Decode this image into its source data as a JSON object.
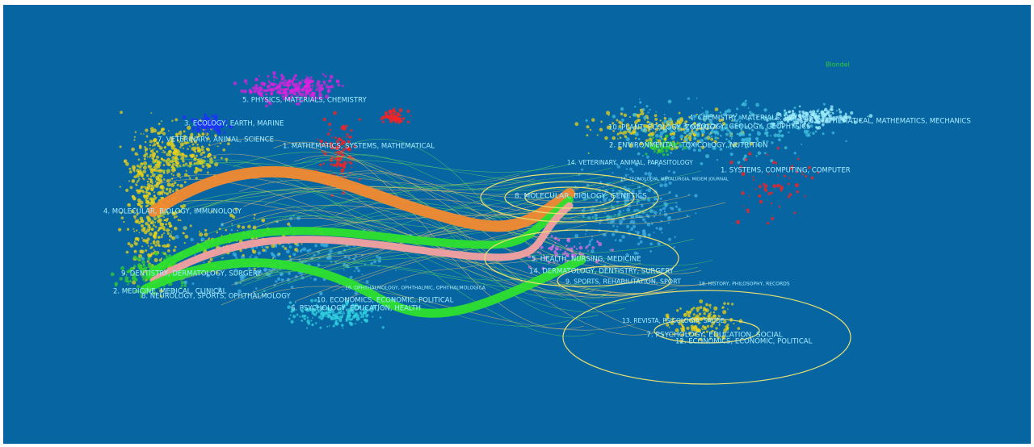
{
  "legend_text": "Blondel",
  "left_map": {
    "labels": [
      "5. PHYSICS, MATERIALS, CHEMISTRY",
      "3. ECOLOGY, EARTH, MARINE",
      "7. VETERINARY, ANIMAL, SCIENCE",
      "1. MATHEMATICS, SYSTEMS, MATHEMATICAL",
      "4. MOLECULAR, BIOLOGY, IMMUNOLOGY",
      "9. DENTISTRY, DERMATOLOGY, SURGERY",
      "2. MEDICINE, MEDICAL, CLINICAL",
      "8. NEUROLOGY, SPORTS, OPHTHALMOLOGY",
      "16. OPHTHALMOLOGY, OPHTHALMIC, OPHTHALMOLOGICA",
      "10. ECONOMICS, ECONOMIC, POLITICAL",
      "6. PSYCHOLOGY, EDUCATION, HEALTH"
    ]
  },
  "right_map": {
    "labels": [
      "4. CHEMISTRY, MATERIALS, PHYSICS",
      "6. MATHEMATICAL, MATHEMATICS, MECHANICS",
      "10. PLANT, ECOLOGY, ZOOLOGY",
      "3. GEOLOGY, GEOLOGY, GEOPHYSICS",
      "2. ENVIRONMENTAL, TOXICOLOGY, NUTRITION",
      "1. SYSTEMS, COMPUTING, COMPUTER",
      "14. VETERINARY, ANIMAL, PARASITOLOGY",
      "15. TECNOLOGIA, METALURGIA, MIDEM JOURNAL",
      "8. MOLECULAR, BIOLOGY, GENETICS",
      "5. HEALTH, NURSING, MEDICINE",
      "14. DERMATOLOGY, DENTISTRY, SURGERY",
      "9. SPORTS, REHABILITATION, SPORT",
      "18. HISTORY, PHILOSOPHY, RECORDS",
      "13. REVISTA, PSICOLOGIA, SAUDE",
      "7. PSYCHOLOGY, EDUCATION, SOCIAL",
      "12. ECONOMICS, ECONOMIC, POLITICAL"
    ]
  }
}
